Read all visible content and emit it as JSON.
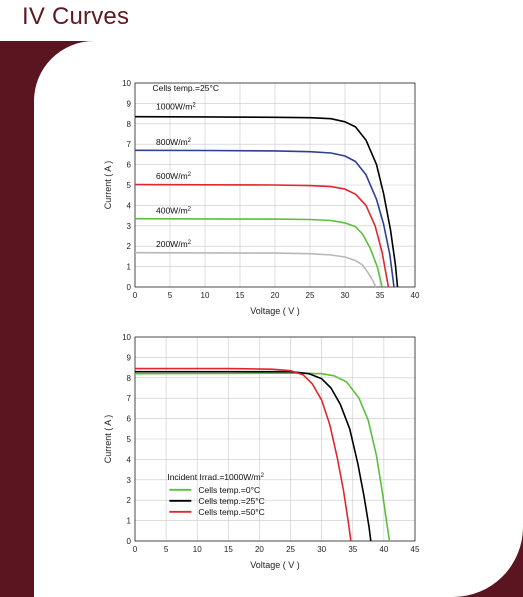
{
  "page": {
    "title": "IV Curves"
  },
  "chart_data": [
    {
      "type": "line",
      "title": "",
      "xlabel": "Voltage ( V )",
      "ylabel": "Current ( A )",
      "xlim": [
        0,
        40
      ],
      "ylim": [
        0,
        10
      ],
      "x_ticks": [
        0,
        5,
        10,
        15,
        20,
        25,
        30,
        35,
        40
      ],
      "y_ticks": [
        0,
        1,
        2,
        3,
        4,
        5,
        6,
        7,
        8,
        9,
        10
      ],
      "grid": true,
      "legend": "none",
      "annotations": [
        {
          "text": "Cells temp.=25",
          "suffix": "°C",
          "x": 2.5,
          "y": 9.6
        }
      ],
      "series": [
        {
          "name": "1000W/m",
          "sup": "2",
          "color": "#000000",
          "label_x": 3,
          "label_y": 8.7,
          "points": [
            [
              0,
              8.35
            ],
            [
              10,
              8.34
            ],
            [
              20,
              8.32
            ],
            [
              25,
              8.3
            ],
            [
              28,
              8.25
            ],
            [
              30,
              8.1
            ],
            [
              31.5,
              7.85
            ],
            [
              33,
              7.2
            ],
            [
              34.5,
              6.0
            ],
            [
              35.5,
              4.6
            ],
            [
              36.5,
              2.8
            ],
            [
              37.2,
              1.1
            ],
            [
              37.5,
              0
            ]
          ]
        },
        {
          "name": "800W/m",
          "sup": "2",
          "color": "#2e3f96",
          "label_x": 3,
          "label_y": 6.95,
          "points": [
            [
              0,
              6.7
            ],
            [
              10,
              6.69
            ],
            [
              20,
              6.67
            ],
            [
              25,
              6.63
            ],
            [
              28,
              6.57
            ],
            [
              30,
              6.42
            ],
            [
              31.5,
              6.15
            ],
            [
              33,
              5.5
            ],
            [
              34.5,
              4.3
            ],
            [
              35.5,
              3.1
            ],
            [
              36.4,
              1.6
            ],
            [
              37.0,
              0
            ]
          ]
        },
        {
          "name": "600W/m",
          "sup": "2",
          "color": "#e0262e",
          "label_x": 3,
          "label_y": 5.3,
          "points": [
            [
              0,
              5.02
            ],
            [
              10,
              5.01
            ],
            [
              20,
              5.0
            ],
            [
              25,
              4.97
            ],
            [
              28,
              4.92
            ],
            [
              30,
              4.8
            ],
            [
              31.5,
              4.55
            ],
            [
              33,
              4.0
            ],
            [
              34.3,
              3.0
            ],
            [
              35.3,
              1.7
            ],
            [
              36.2,
              0
            ]
          ]
        },
        {
          "name": "400W/m",
          "sup": "2",
          "color": "#5bbf3e",
          "label_x": 3,
          "label_y": 3.6,
          "points": [
            [
              0,
              3.35
            ],
            [
              10,
              3.34
            ],
            [
              20,
              3.33
            ],
            [
              25,
              3.31
            ],
            [
              28,
              3.26
            ],
            [
              30,
              3.14
            ],
            [
              31.5,
              2.95
            ],
            [
              32.5,
              2.6
            ],
            [
              33.6,
              1.9
            ],
            [
              34.6,
              1.0
            ],
            [
              35.3,
              0
            ]
          ]
        },
        {
          "name": "200W/m",
          "sup": "2",
          "color": "#b8b8b8",
          "label_x": 3,
          "label_y": 1.95,
          "points": [
            [
              0,
              1.68
            ],
            [
              10,
              1.67
            ],
            [
              20,
              1.66
            ],
            [
              25,
              1.63
            ],
            [
              28,
              1.57
            ],
            [
              30,
              1.47
            ],
            [
              31.5,
              1.3
            ],
            [
              32.5,
              1.08
            ],
            [
              33.3,
              0.7
            ],
            [
              34.0,
              0.3
            ],
            [
              34.4,
              0
            ]
          ]
        }
      ]
    },
    {
      "type": "line",
      "title": "",
      "xlabel": "Voltage ( V )",
      "ylabel": "Current ( A )",
      "xlim": [
        0,
        45
      ],
      "ylim": [
        0,
        10
      ],
      "x_ticks": [
        0,
        5,
        10,
        15,
        20,
        25,
        30,
        35,
        40,
        45
      ],
      "y_ticks": [
        0,
        1,
        2,
        3,
        4,
        5,
        6,
        7,
        8,
        9,
        10
      ],
      "grid": true,
      "legend": "bottom-left",
      "legend_title": "Incident Irrad.=1000W/m",
      "legend_title_sup": "2",
      "series": [
        {
          "name": "Cells temp.=0",
          "suffix": "°C",
          "color": "#5bbf3e",
          "points": [
            [
              0,
              8.2
            ],
            [
              15,
              8.21
            ],
            [
              25,
              8.23
            ],
            [
              30,
              8.2
            ],
            [
              32,
              8.1
            ],
            [
              34,
              7.8
            ],
            [
              36,
              7.0
            ],
            [
              37.5,
              5.9
            ],
            [
              38.8,
              4.2
            ],
            [
              39.7,
              2.5
            ],
            [
              40.4,
              1.0
            ],
            [
              40.9,
              0
            ]
          ]
        },
        {
          "name": "Cells temp.=25",
          "suffix": "°C",
          "color": "#000000",
          "points": [
            [
              0,
              8.3
            ],
            [
              15,
              8.3
            ],
            [
              25,
              8.3
            ],
            [
              28,
              8.2
            ],
            [
              30,
              7.95
            ],
            [
              31.5,
              7.5
            ],
            [
              33,
              6.7
            ],
            [
              34.5,
              5.5
            ],
            [
              35.8,
              3.8
            ],
            [
              36.8,
              2.2
            ],
            [
              37.6,
              0.7
            ],
            [
              37.9,
              0
            ]
          ]
        },
        {
          "name": "Cells temp.=50",
          "suffix": "°C",
          "color": "#e0262e",
          "points": [
            [
              0,
              8.45
            ],
            [
              15,
              8.45
            ],
            [
              22,
              8.42
            ],
            [
              25,
              8.35
            ],
            [
              27,
              8.15
            ],
            [
              28.5,
              7.7
            ],
            [
              30,
              6.9
            ],
            [
              31.3,
              5.7
            ],
            [
              32.5,
              4.1
            ],
            [
              33.5,
              2.5
            ],
            [
              34.3,
              0.9
            ],
            [
              34.7,
              0
            ]
          ]
        }
      ]
    }
  ]
}
